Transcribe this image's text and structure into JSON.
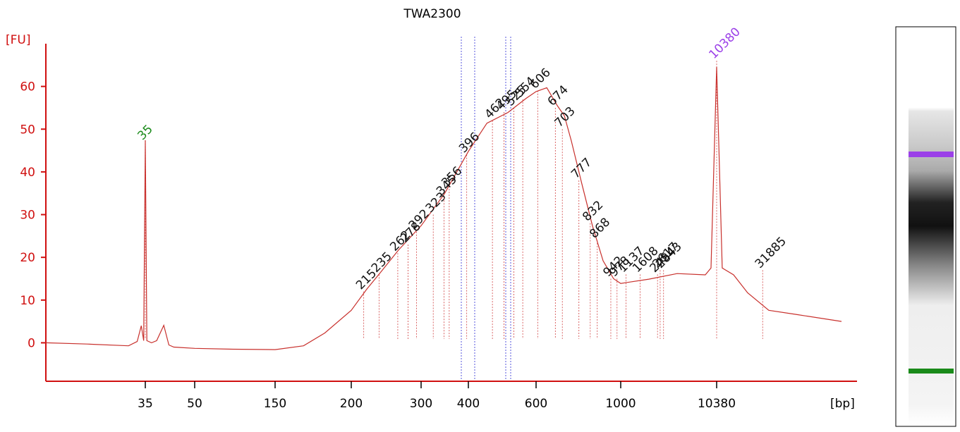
{
  "chart_data": {
    "type": "line",
    "title": "TWA2300",
    "ylabel": "[FU]",
    "xlabel": "[bp]",
    "log_x": true,
    "xticks": [
      35,
      50,
      150,
      200,
      300,
      400,
      600,
      1000,
      10380
    ],
    "ylim": [
      -9,
      70
    ],
    "yticks": [
      0,
      10,
      20,
      30,
      40,
      50,
      60
    ],
    "series": [
      {
        "name": "TWA2300",
        "color": "#c8302c",
        "x": [
          17,
          23,
          31,
          33,
          34,
          34.6,
          35,
          35.4,
          36.6,
          38,
          40,
          41.5,
          43,
          50,
          84,
          150,
          167,
          181,
          200,
          219,
          238,
          263,
          300,
          346,
          400,
          447,
          507,
          565,
          600,
          640,
          682,
          712,
          742,
          790,
          843,
          899,
          958,
          1000,
          1991,
          3963,
          7870,
          9040,
          10380,
          11900,
          15700,
          22100,
          37000,
          73800,
          218000
        ],
        "values": [
          0,
          -0.3,
          -0.7,
          0.3,
          4,
          0.5,
          47.4,
          0.5,
          0,
          0.5,
          4.1,
          -0.5,
          -1,
          -1.3,
          -1.5,
          -1.6,
          -0.7,
          2.3,
          7.6,
          12.6,
          16.7,
          21.7,
          27.4,
          34.9,
          44.8,
          51.4,
          53.9,
          57.2,
          58.8,
          59.7,
          55.5,
          53.1,
          47.3,
          37.4,
          27.4,
          19.2,
          15,
          13.9,
          14.9,
          16.2,
          15.9,
          17.5,
          64.6,
          17.5,
          15.9,
          11.7,
          7.6,
          6.6,
          5
        ]
      }
    ],
    "peaks": [
      {
        "size": 35,
        "height": 47,
        "color": "#1a8a1a"
      },
      {
        "size": 215,
        "height": 12,
        "color": "#111111"
      },
      {
        "size": 235,
        "height": 16,
        "color": "#111111"
      },
      {
        "size": 262,
        "height": 21,
        "color": "#111111"
      },
      {
        "size": 278,
        "height": 23,
        "color": "#111111"
      },
      {
        "size": 292,
        "height": 26,
        "color": "#111111"
      },
      {
        "size": 323,
        "height": 30,
        "color": "#111111"
      },
      {
        "size": 345,
        "height": 34,
        "color": "#111111"
      },
      {
        "size": 356,
        "height": 36,
        "color": "#111111"
      },
      {
        "size": 396,
        "height": 44,
        "color": "#111111"
      },
      {
        "size": 462,
        "height": 52,
        "color": "#111111"
      },
      {
        "size": 495,
        "height": 54,
        "color": "#111111"
      },
      {
        "size": 525,
        "height": 55,
        "color": "#111111"
      },
      {
        "size": 554,
        "height": 57,
        "color": "#111111"
      },
      {
        "size": 606,
        "height": 59,
        "color": "#111111"
      },
      {
        "size": 674,
        "height": 55,
        "color": "#111111"
      },
      {
        "size": 703,
        "height": 50,
        "color": "#111111"
      },
      {
        "size": 777,
        "height": 38,
        "color": "#111111"
      },
      {
        "size": 832,
        "height": 28,
        "color": "#111111"
      },
      {
        "size": 868,
        "height": 24,
        "color": "#111111"
      },
      {
        "size": 942,
        "height": 15,
        "color": "#111111"
      },
      {
        "size": 978,
        "height": 15,
        "color": "#111111"
      },
      {
        "size": 1137,
        "height": 16,
        "color": "#111111"
      },
      {
        "size": 1608,
        "height": 16,
        "color": "#111111"
      },
      {
        "size": 2454,
        "height": 16,
        "color": "#111111"
      },
      {
        "size": 2617,
        "height": 17,
        "color": "#111111"
      },
      {
        "size": 2843,
        "height": 17,
        "color": "#111111"
      },
      {
        "size": 10380,
        "height": 66,
        "color": "#9b40e8"
      },
      {
        "size": 31885,
        "height": 17,
        "color": "#111111"
      }
    ]
  }
}
